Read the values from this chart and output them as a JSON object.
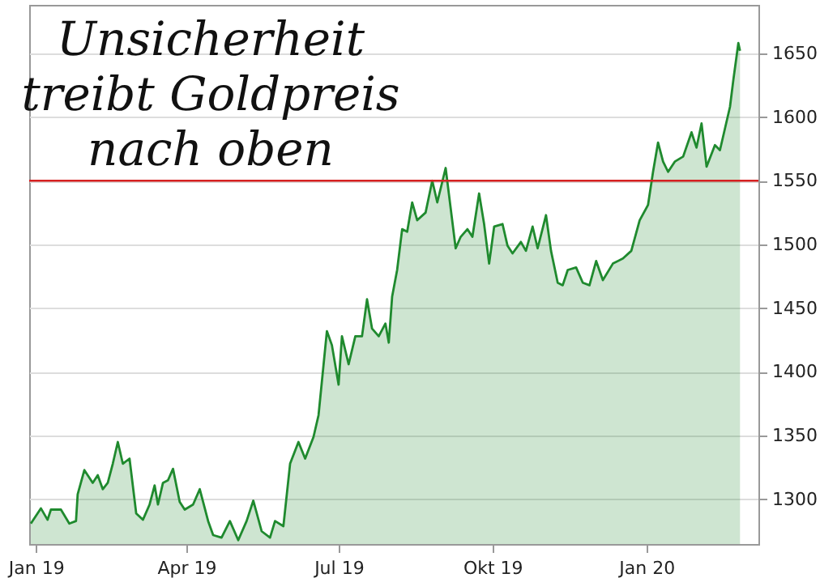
{
  "chart_data": {
    "type": "area",
    "title": "Unsicherheit treibt Goldpreis nach oben",
    "x": [
      "2018-12-29",
      "2019-01-04",
      "2019-01-08",
      "2019-01-10",
      "2019-01-16",
      "2019-01-21",
      "2019-01-25",
      "2019-01-26",
      "2019-01-30",
      "2019-02-04",
      "2019-02-07",
      "2019-02-10",
      "2019-02-13",
      "2019-02-16",
      "2019-02-19",
      "2019-02-22",
      "2019-02-26",
      "2019-03-02",
      "2019-03-06",
      "2019-03-10",
      "2019-03-13",
      "2019-03-15",
      "2019-03-18",
      "2019-03-21",
      "2019-03-24",
      "2019-03-28",
      "2019-03-31",
      "2019-04-05",
      "2019-04-09",
      "2019-04-14",
      "2019-04-17",
      "2019-04-22",
      "2019-04-27",
      "2019-05-02",
      "2019-05-07",
      "2019-05-11",
      "2019-05-16",
      "2019-05-21",
      "2019-05-24",
      "2019-05-29",
      "2019-06-02",
      "2019-06-07",
      "2019-06-11",
      "2019-06-16",
      "2019-06-19",
      "2019-06-24",
      "2019-06-27",
      "2019-07-01",
      "2019-07-03",
      "2019-07-07",
      "2019-07-11",
      "2019-07-15",
      "2019-07-18",
      "2019-07-21",
      "2019-07-25",
      "2019-07-29",
      "2019-07-31",
      "2019-08-02",
      "2019-08-05",
      "2019-08-08",
      "2019-08-11",
      "2019-08-14",
      "2019-08-17",
      "2019-08-22",
      "2019-08-26",
      "2019-08-29",
      "2019-09-03",
      "2019-09-09",
      "2019-09-12",
      "2019-09-16",
      "2019-09-19",
      "2019-09-23",
      "2019-09-26",
      "2019-09-29",
      "2019-10-02",
      "2019-10-07",
      "2019-10-10",
      "2019-10-13",
      "2019-10-18",
      "2019-10-21",
      "2019-10-25",
      "2019-10-28",
      "2019-11-02",
      "2019-11-05",
      "2019-11-09",
      "2019-11-12",
      "2019-11-15",
      "2019-11-20",
      "2019-11-24",
      "2019-11-28",
      "2019-12-02",
      "2019-12-06",
      "2019-12-12",
      "2019-12-18",
      "2019-12-23",
      "2019-12-28",
      "2020-01-02",
      "2020-01-05",
      "2020-01-08",
      "2020-01-11",
      "2020-01-14",
      "2020-01-18",
      "2020-01-23",
      "2020-01-28",
      "2020-01-31",
      "2020-02-03",
      "2020-02-06",
      "2020-02-11",
      "2020-02-14",
      "2020-02-17",
      "2020-02-20",
      "2020-02-22",
      "2020-02-25",
      "2020-02-26"
    ],
    "series": [
      {
        "color": "#1f8a2e",
        "values": [
          1281,
          1293,
          1284,
          1292,
          1292,
          1281,
          1283,
          1304,
          1323,
          1313,
          1319,
          1308,
          1313,
          1328,
          1345,
          1328,
          1332,
          1289,
          1284,
          1296,
          1311,
          1296,
          1313,
          1315,
          1324,
          1298,
          1292,
          1296,
          1308,
          1283,
          1272,
          1270,
          1283,
          1268,
          1283,
          1299,
          1275,
          1270,
          1283,
          1279,
          1328,
          1345,
          1332,
          1349,
          1366,
          1432,
          1421,
          1390,
          1428,
          1406,
          1428,
          1428,
          1457,
          1434,
          1428,
          1438,
          1423,
          1459,
          1480,
          1512,
          1510,
          1533,
          1519,
          1525,
          1550,
          1533,
          1560,
          1497,
          1506,
          1512,
          1506,
          1540,
          1516,
          1485,
          1514,
          1516,
          1499,
          1493,
          1502,
          1495,
          1514,
          1497,
          1523,
          1495,
          1470,
          1468,
          1480,
          1482,
          1470,
          1468,
          1487,
          1472,
          1485,
          1489,
          1495,
          1519,
          1531,
          1557,
          1580,
          1565,
          1557,
          1565,
          1569,
          1588,
          1576,
          1595,
          1561,
          1578,
          1574,
          1591,
          1608,
          1629,
          1658,
          1652
        ]
      }
    ],
    "xlim": [
      "2018-12-28",
      "2020-03-08"
    ],
    "xticks": [
      {
        "value": "2019-01-01",
        "label": "Jan 19"
      },
      {
        "value": "2019-04-01",
        "label": "Apr 19"
      },
      {
        "value": "2019-07-01",
        "label": "Jul 19"
      },
      {
        "value": "2019-10-01",
        "label": "Okt 19"
      },
      {
        "value": "2020-01-01",
        "label": "Jan 20"
      }
    ],
    "ylim": [
      1265,
      1688
    ],
    "yticks": [
      1300,
      1350,
      1400,
      1450,
      1500,
      1550,
      1600,
      1650
    ],
    "ref_lines": [
      {
        "axis": "y",
        "value": 1550,
        "color": "#d62020"
      }
    ],
    "grid": "y"
  }
}
